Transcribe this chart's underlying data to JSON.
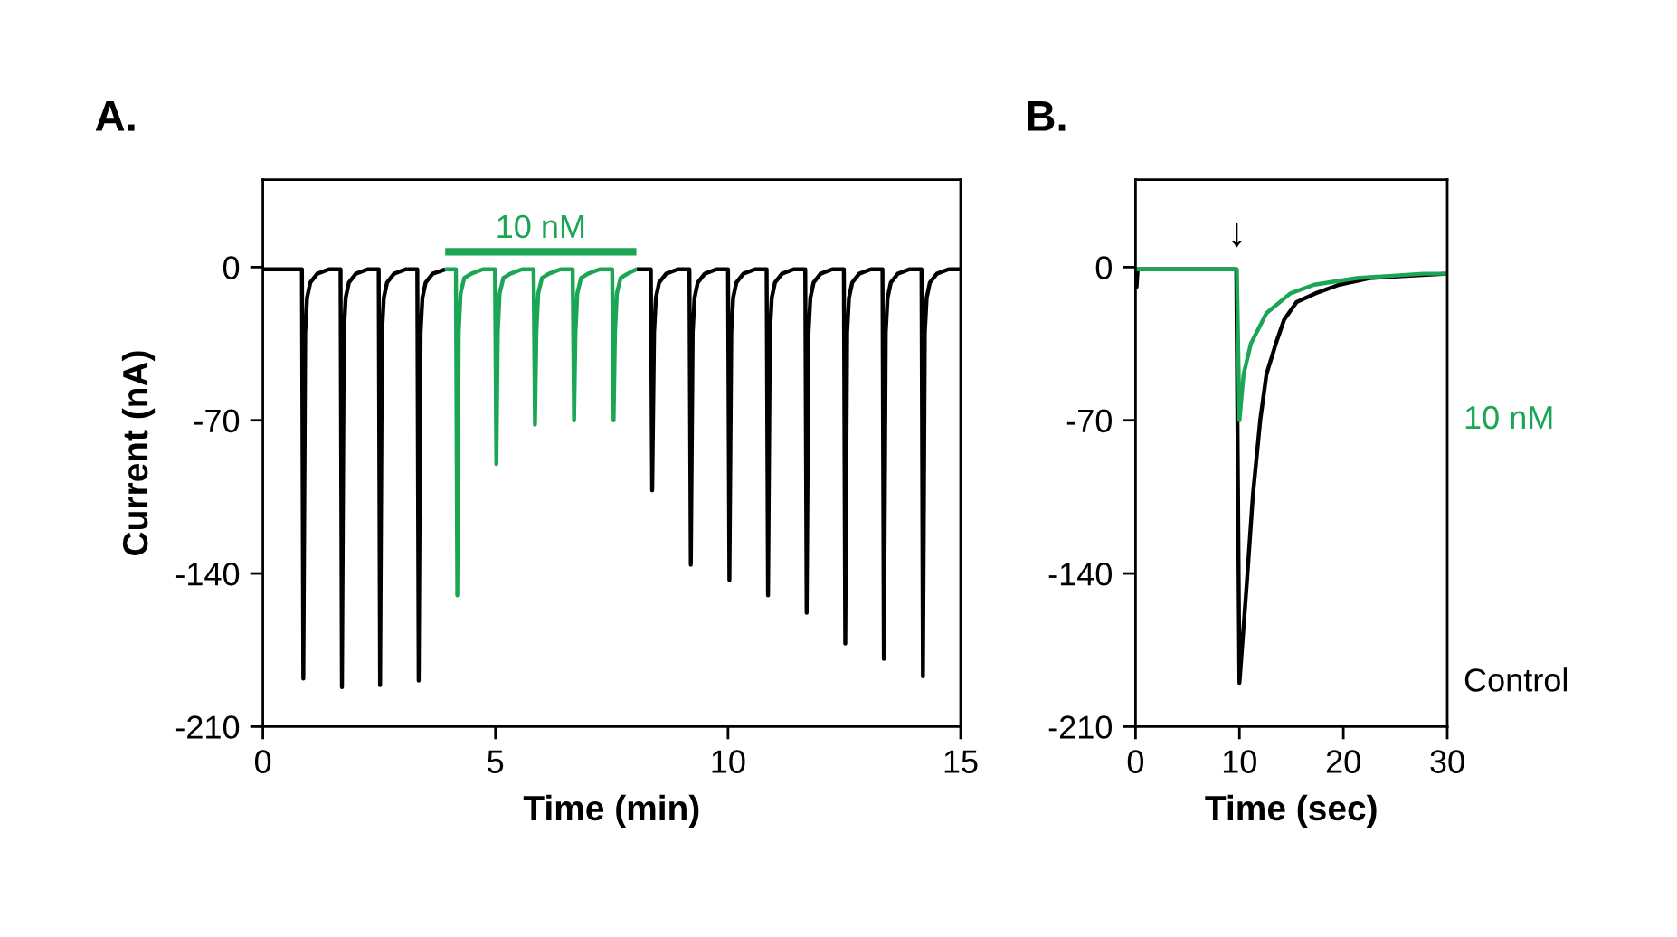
{
  "chart_data": [
    {
      "type": "line",
      "title": "A.",
      "xlabel": "Time (min)",
      "ylabel": "Current (nA)",
      "xlim": [
        0,
        15
      ],
      "xticks": [
        0,
        5,
        10,
        15
      ],
      "ylim": [
        -210,
        40
      ],
      "yticks": [
        -210,
        -140,
        -70,
        0
      ],
      "series": [
        {
          "color": "#000000",
          "x": [
            0,
            0.5,
            0.84,
            0.87,
            0.91,
            0.95,
            1.02,
            1.17,
            1.42,
            1.67,
            1.7,
            1.74,
            1.78,
            1.85,
            2.0,
            2.25,
            2.49,
            2.52,
            2.56,
            2.6,
            2.67,
            2.82,
            3.07,
            3.32,
            3.35,
            3.39,
            3.43,
            3.5,
            3.65,
            3.92,
            6.0,
            8.03,
            8.34,
            8.37,
            8.41,
            8.45,
            8.52,
            8.67,
            8.92,
            9.17,
            9.2,
            9.24,
            9.28,
            9.35,
            9.5,
            9.75,
            10.0,
            10.03,
            10.07,
            10.11,
            10.18,
            10.33,
            10.58,
            10.83,
            10.86,
            10.9,
            10.94,
            11.01,
            11.16,
            11.41,
            11.66,
            11.69,
            11.73,
            11.77,
            11.84,
            11.99,
            12.24,
            12.49,
            12.52,
            12.56,
            12.6,
            12.67,
            12.82,
            13.07,
            13.32,
            13.35,
            13.39,
            13.43,
            13.5,
            13.65,
            13.9,
            14.16,
            14.19,
            14.23,
            14.27,
            14.34,
            14.49,
            14.74,
            15
          ],
          "values": [
            -1,
            -1,
            -1,
            -188,
            -30,
            -14,
            -7,
            -3,
            -1,
            -1,
            -192,
            -30,
            -14,
            -7,
            -3,
            -1,
            -1,
            -191,
            -30,
            -14,
            -7,
            -3,
            -1,
            -1,
            -189,
            -30,
            -14,
            -7,
            -3,
            -1,
            null,
            -1,
            -1,
            -102,
            -30,
            -14,
            -7,
            -3,
            -1,
            -1,
            -136,
            -30,
            -14,
            -7,
            -3,
            -1,
            -1,
            -143,
            -30,
            -14,
            -7,
            -3,
            -1,
            -1,
            -150,
            -30,
            -14,
            -7,
            -3,
            -1,
            -1,
            -158,
            -30,
            -14,
            -7,
            -3,
            -1,
            -1,
            -172,
            -30,
            -14,
            -7,
            -3,
            -1,
            -1,
            -179,
            -30,
            -14,
            -7,
            -3,
            -1,
            -1,
            -187,
            -30,
            -14,
            -7,
            -3,
            -1,
            -1
          ]
        },
        {
          "color": "#1ba655",
          "x": [
            3.92,
            4.15,
            4.18,
            4.21,
            4.25,
            4.33,
            4.48,
            4.73,
            4.99,
            5.02,
            5.05,
            5.09,
            5.17,
            5.32,
            5.57,
            5.82,
            5.85,
            5.88,
            5.92,
            6.0,
            6.15,
            6.4,
            6.66,
            6.69,
            6.72,
            6.76,
            6.84,
            6.99,
            7.24,
            7.51,
            7.54,
            7.57,
            7.61,
            7.69,
            7.84,
            8.03
          ],
          "values": [
            -1,
            -1,
            -150,
            -30,
            -12,
            -5,
            -3,
            -1,
            -1,
            -90,
            -30,
            -12,
            -5,
            -3,
            -1,
            -1,
            -72,
            -30,
            -12,
            -5,
            -3,
            -1,
            -1,
            -70,
            -30,
            -12,
            -5,
            -3,
            -1,
            -1,
            -70,
            -30,
            -12,
            -5,
            -3,
            -1
          ]
        },
        {
          "name": "10 nM",
          "color": "#1ba655",
          "x": [
            3.92,
            8.03
          ],
          "values": [
            7,
            7
          ]
        }
      ]
    },
    {
      "type": "line",
      "title": "B.",
      "xlabel": "Time (sec)",
      "xlim": [
        0,
        30
      ],
      "xticks": [
        0,
        10,
        20,
        30
      ],
      "ylim": [
        -210,
        40
      ],
      "yticks": [
        -210,
        -140,
        -70,
        0
      ],
      "series": [
        {
          "name": "Control",
          "color": "#000000",
          "x": [
            0,
            0.1,
            0.2,
            9.7,
            10.0,
            10.7,
            11.3,
            12.0,
            12.6,
            13.5,
            14.3,
            15.5,
            17.3,
            19.6,
            22.5,
            26.0,
            30
          ],
          "values": [
            -1,
            -9,
            -1,
            -1,
            -190,
            -145,
            -104,
            -70,
            -49,
            -35,
            -24,
            -16,
            -12,
            -8,
            -5,
            -4,
            -3
          ]
        },
        {
          "name": "10 nM",
          "color": "#1ba655",
          "x": [
            0,
            9.75,
            10.0,
            10.4,
            11.1,
            12.6,
            14.9,
            17.2,
            21.3,
            27.7,
            30
          ],
          "values": [
            -1,
            -1,
            -70,
            -49,
            -35,
            -21,
            -12,
            -8,
            -5,
            -3,
            -3
          ]
        }
      ],
      "annotations": [
        {
          "text": "↓",
          "x": 9.75,
          "y": -1
        }
      ]
    }
  ]
}
